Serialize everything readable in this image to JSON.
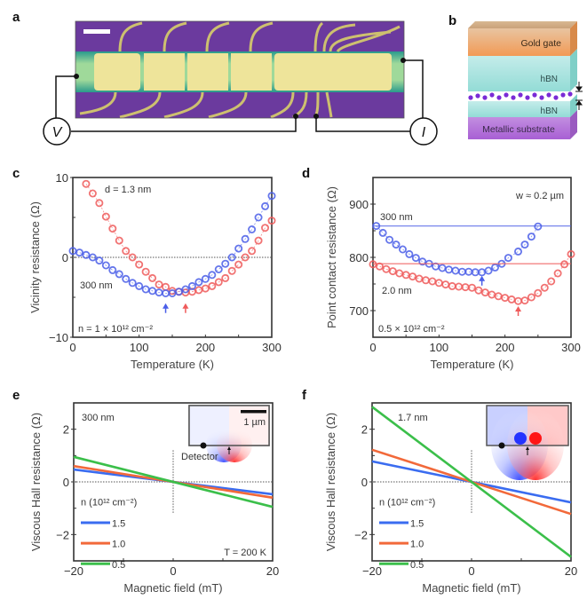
{
  "figure": {
    "panels": {
      "a": {
        "label": "a",
        "voltmeter_symbol": "V",
        "ammeter_symbol": "I",
        "description": "optical micrograph of Hall bar device with contacts"
      },
      "b": {
        "label": "b",
        "layers": [
          "Gold gate",
          "hBN",
          "hBN",
          "Metallic substrate"
        ],
        "colors": {
          "gold_gate": "#f2b27c",
          "hbn": "#a9e3df",
          "substrate": "#b26ad6",
          "graphene": "#7a2bd6"
        }
      }
    }
  },
  "chart_data": [
    {
      "id": "c",
      "label": "c",
      "type": "scatter",
      "title": "",
      "xlabel": "Temperature  (K)",
      "ylabel": "Vicinity resistance  (Ω)",
      "xlim": [
        0,
        300
      ],
      "ylim": [
        -10,
        10
      ],
      "xticks": [
        0,
        100,
        200,
        300
      ],
      "yticks": [
        -10,
        0,
        10
      ],
      "annotations": [
        "n = 1 × 10¹² cm⁻²"
      ],
      "zero_line": true,
      "series": [
        {
          "name": "d = 1.3 nm",
          "color": "#ef5b5b",
          "x": [
            20,
            30,
            40,
            50,
            60,
            70,
            80,
            90,
            100,
            110,
            120,
            130,
            140,
            150,
            160,
            170,
            180,
            190,
            200,
            210,
            220,
            230,
            240,
            250,
            260,
            270,
            280,
            290,
            300
          ],
          "y": [
            9.2,
            8.0,
            6.8,
            5.1,
            3.6,
            2.1,
            0.8,
            0.0,
            -0.9,
            -1.8,
            -2.6,
            -3.4,
            -3.7,
            -4.2,
            -4.3,
            -4.4,
            -4.3,
            -4.1,
            -3.9,
            -3.6,
            -3.1,
            -2.6,
            -1.7,
            -0.9,
            0.0,
            0.8,
            2.1,
            3.7,
            4.6
          ]
        },
        {
          "name": "300 nm",
          "color": "#4a5ee8",
          "x": [
            0,
            10,
            20,
            30,
            40,
            50,
            60,
            70,
            80,
            90,
            100,
            110,
            120,
            130,
            140,
            150,
            160,
            170,
            180,
            190,
            200,
            210,
            220,
            230,
            240,
            250,
            260,
            270,
            280,
            290,
            300
          ],
          "y": [
            0.8,
            0.6,
            0.3,
            0.0,
            -0.4,
            -1.0,
            -1.6,
            -2.1,
            -2.7,
            -3.2,
            -3.6,
            -4.0,
            -4.2,
            -4.4,
            -4.5,
            -4.5,
            -4.3,
            -4.0,
            -3.6,
            -3.1,
            -2.7,
            -2.2,
            -1.5,
            -0.8,
            0.0,
            1.1,
            2.3,
            3.5,
            5.0,
            6.4,
            7.7
          ]
        }
      ],
      "markers": [
        {
          "x": 140,
          "color": "#4a5ee8"
        },
        {
          "x": 170,
          "color": "#ef5b5b"
        }
      ]
    },
    {
      "id": "d",
      "label": "d",
      "type": "scatter",
      "title": "",
      "xlabel": "Temperature  (K)",
      "ylabel": "Point contact resistance  (Ω)",
      "xlim": [
        0,
        300
      ],
      "ylim": [
        650,
        950
      ],
      "xticks": [
        0,
        100,
        200,
        300
      ],
      "yticks": [
        700,
        800,
        900
      ],
      "annotations": [
        "w ≈ 0.2 µm",
        "0.5 × 10¹² cm⁻²"
      ],
      "series": [
        {
          "name": "300 nm",
          "color": "#4a5ee8",
          "reference_line": 859,
          "x": [
            5,
            15,
            25,
            35,
            45,
            55,
            65,
            75,
            85,
            95,
            105,
            115,
            125,
            135,
            145,
            155,
            165,
            175,
            185,
            195,
            205,
            220,
            230,
            240,
            250
          ],
          "y": [
            859,
            846,
            833,
            824,
            815,
            806,
            799,
            792,
            788,
            783,
            780,
            777,
            775,
            773,
            773,
            772,
            772,
            775,
            781,
            788,
            799,
            811,
            824,
            839,
            858
          ]
        },
        {
          "name": "2.0 nm",
          "color": "#ef5b5b",
          "reference_line": 788,
          "x": [
            0,
            10,
            20,
            30,
            40,
            50,
            60,
            70,
            80,
            90,
            100,
            110,
            120,
            130,
            140,
            150,
            160,
            170,
            180,
            190,
            200,
            210,
            220,
            230,
            240,
            250,
            260,
            270,
            280,
            290,
            300
          ],
          "y": [
            787,
            783,
            778,
            774,
            770,
            767,
            764,
            760,
            757,
            755,
            752,
            749,
            746,
            745,
            744,
            743,
            738,
            734,
            730,
            727,
            724,
            721,
            718,
            719,
            725,
            733,
            743,
            755,
            770,
            787,
            806
          ]
        }
      ],
      "markers": [
        {
          "x": 165,
          "color": "#4a5ee8"
        },
        {
          "x": 220,
          "color": "#ef5b5b"
        }
      ]
    },
    {
      "id": "e",
      "label": "e",
      "type": "line",
      "title": "",
      "xlabel": "Magnetic field (mT)",
      "ylabel": "Viscous Hall resistance (Ω)",
      "xlim": [
        -20,
        20
      ],
      "ylim": [
        -3,
        3
      ],
      "xticks": [
        -20,
        0,
        20
      ],
      "yticks": [
        -2,
        0,
        2
      ],
      "annotations": [
        "300 nm",
        "T = 200 K",
        "Detector",
        "1 µm"
      ],
      "legend_title": "n (10¹² cm⁻²)",
      "legend_placement": "lower-left",
      "series": [
        {
          "name": "1.5",
          "color": "#3a6cf0",
          "x": [
            -20,
            20
          ],
          "y": [
            0.47,
            -0.47
          ]
        },
        {
          "name": "1.0",
          "color": "#f2693a",
          "x": [
            -20,
            20
          ],
          "y": [
            0.6,
            -0.6
          ]
        },
        {
          "name": "0.5",
          "color": "#3bbf4a",
          "x": [
            -20,
            20
          ],
          "y": [
            0.95,
            -0.95
          ]
        }
      ]
    },
    {
      "id": "f",
      "label": "f",
      "type": "line",
      "title": "",
      "xlabel": "Magnetic field (mT)",
      "ylabel": "Viscous Hall resistance (Ω)",
      "xlim": [
        -20,
        20
      ],
      "ylim": [
        -3,
        3
      ],
      "xticks": [
        -20,
        0,
        20
      ],
      "yticks": [
        -2,
        0,
        2
      ],
      "annotations": [
        "1.7 nm"
      ],
      "legend_title": "n (10¹² cm⁻²)",
      "legend_placement": "lower-left",
      "series": [
        {
          "name": "1.5",
          "color": "#3a6cf0",
          "x": [
            -20,
            20
          ],
          "y": [
            0.78,
            -0.78
          ]
        },
        {
          "name": "1.0",
          "color": "#f2693a",
          "x": [
            -20,
            20
          ],
          "y": [
            1.22,
            -1.22
          ]
        },
        {
          "name": "0.5",
          "color": "#3bbf4a",
          "x": [
            -20,
            20
          ],
          "y": [
            2.85,
            -2.85
          ]
        }
      ]
    }
  ]
}
